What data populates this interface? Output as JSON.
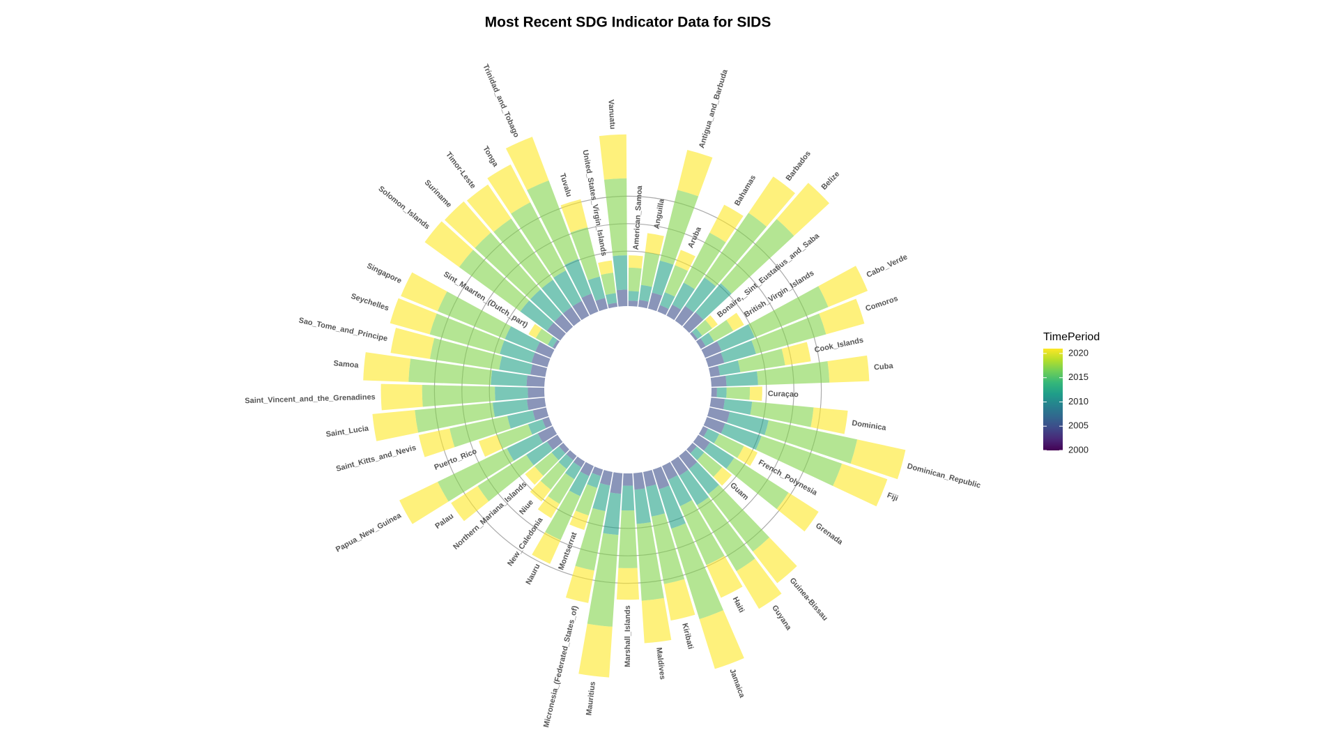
{
  "chart_data": {
    "type": "radial-stacked-bar",
    "title": "Most Recent SDG Indicator Data for SIDS",
    "categories": [
      "American_Samoa",
      "Anguilla",
      "Antigua_and_Barbuda",
      "Aruba",
      "Bahamas",
      "Barbados",
      "Belize",
      "Bonaire,_Sint_Eustatius_and_Saba",
      "British_Virgin_Islands",
      "Cabo_Verde",
      "Comoros",
      "Cook_Islands",
      "Cuba",
      "Curaçao",
      "Dominica",
      "Dominican_Republic",
      "Fiji",
      "French_Polynesia",
      "Grenada",
      "Guam",
      "Guinea-Bissau",
      "Guyana",
      "Haiti",
      "Jamaica",
      "Kiribati",
      "Maldives",
      "Marshall_Islands",
      "Mauritius",
      "Micronesia_(Federated_States_of)",
      "Montserrat",
      "Nauru",
      "New_Caledonia",
      "Niue",
      "Northern_Mariana_Islands",
      "Palau",
      "Papua_New_Guinea",
      "Puerto_Rico",
      "Saint_Kitts_and_Nevis",
      "Saint_Lucia",
      "Saint_Vincent_and_the_Grenadines",
      "Samoa",
      "Sao_Tome_and_Principe",
      "Seychelles",
      "Singapore",
      "Sint_Maarten_(Dutch_part)",
      "Solomon_Islands",
      "Suriname",
      "Timor-Leste",
      "Tonga",
      "Trinidad_and_Tobago",
      "Tuvalu",
      "United_States_Virgin_Islands",
      "Vanuatu"
    ],
    "segment_years": [
      2005,
      2012,
      2017,
      2021
    ],
    "values": [
      [
        20,
        35,
        85,
        45
      ],
      [
        25,
        55,
        120,
        70
      ],
      [
        60,
        120,
        265,
        150
      ],
      [
        25,
        50,
        105,
        60
      ],
      [
        45,
        90,
        205,
        115
      ],
      [
        65,
        125,
        285,
        160
      ],
      [
        70,
        140,
        310,
        175
      ],
      [
        10,
        20,
        45,
        25
      ],
      [
        20,
        35,
        80,
        45
      ],
      [
        65,
        130,
        290,
        155
      ],
      [
        60,
        120,
        265,
        145
      ],
      [
        35,
        75,
        165,
        95
      ],
      [
        55,
        115,
        260,
        145
      ],
      [
        20,
        35,
        85,
        45
      ],
      [
        50,
        100,
        225,
        125
      ],
      [
        75,
        145,
        330,
        180
      ],
      [
        70,
        140,
        310,
        175
      ],
      [
        20,
        45,
        100,
        55
      ],
      [
        50,
        105,
        235,
        130
      ],
      [
        20,
        35,
        85,
        45
      ],
      [
        60,
        115,
        265,
        145
      ],
      [
        60,
        125,
        280,
        160
      ],
      [
        55,
        105,
        235,
        130
      ],
      [
        75,
        150,
        345,
        190
      ],
      [
        55,
        110,
        250,
        135
      ],
      [
        60,
        125,
        280,
        155
      ],
      [
        45,
        90,
        210,
        115
      ],
      [
        75,
        150,
        335,
        185
      ],
      [
        50,
        95,
        220,
        120
      ],
      [
        25,
        45,
        105,
        55
      ],
      [
        40,
        80,
        175,
        95
      ],
      [
        25,
        50,
        105,
        60
      ],
      [
        20,
        40,
        95,
        55
      ],
      [
        20,
        35,
        80,
        45
      ],
      [
        45,
        90,
        210,
        115
      ],
      [
        60,
        125,
        280,
        155
      ],
      [
        25,
        55,
        120,
        70
      ],
      [
        50,
        95,
        215,
        115
      ],
      [
        65,
        125,
        285,
        155
      ],
      [
        60,
        120,
        265,
        150
      ],
      [
        65,
        130,
        300,
        165
      ],
      [
        55,
        115,
        255,
        145
      ],
      [
        60,
        120,
        265,
        150
      ],
      [
        60,
        120,
        265,
        145
      ],
      [
        10,
        20,
        50,
        30
      ],
      [
        60,
        120,
        275,
        155
      ],
      [
        60,
        120,
        275,
        150
      ],
      [
        60,
        120,
        270,
        150
      ],
      [
        60,
        125,
        280,
        155
      ],
      [
        70,
        135,
        305,
        170
      ],
      [
        40,
        80,
        185,
        105
      ],
      [
        15,
        35,
        75,
        45
      ],
      [
        60,
        125,
        280,
        160
      ]
    ],
    "ylim": [
      0,
      800
    ],
    "yticks": [
      200,
      300,
      400
    ],
    "grid": true,
    "colormap": "viridis",
    "colorbar": {
      "title": "TimePeriod",
      "lim": [
        2000,
        2021
      ],
      "ticks": [
        2000,
        2005,
        2010,
        2015,
        2020
      ]
    }
  }
}
